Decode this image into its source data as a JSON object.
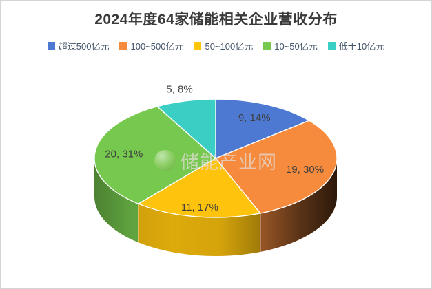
{
  "frame": {
    "background": "#FFFFFF",
    "border_color": "#D5D5D5"
  },
  "text_colors": {
    "title": "#3A3A3A",
    "data_label": "#3F3F3F",
    "legend_text": "#44546A"
  },
  "watermark": {
    "text": "储能产业网",
    "logo": "green-globe-logo"
  },
  "chart_data": {
    "type": "pie",
    "style": "3d",
    "title": "2024年度64家储能相关企业营收分布",
    "total_companies": 64,
    "legend_position": "top",
    "direction": "clockwise",
    "start_angle_deg": 0,
    "data_label_format": "{count}, {percent}%",
    "series": [
      {
        "label": "超过500亿元",
        "count": 9,
        "percent": 14,
        "color": "#4E79D2",
        "label_r": 0.75
      },
      {
        "label": "100~500亿元",
        "count": 19,
        "percent": 30,
        "color": "#F68B3D",
        "label_r": 0.76
      },
      {
        "label": "50~100亿元",
        "count": 11,
        "percent": 17,
        "color": "#FEC30D",
        "label_r": 0.84
      },
      {
        "label": "10~50亿元",
        "count": 20,
        "percent": 31,
        "color": "#76C84E",
        "label_r": 0.76
      },
      {
        "label": "低于10亿元",
        "count": 5,
        "percent": 8,
        "color": "#3BCEC4",
        "label_r": 1.2
      }
    ]
  }
}
